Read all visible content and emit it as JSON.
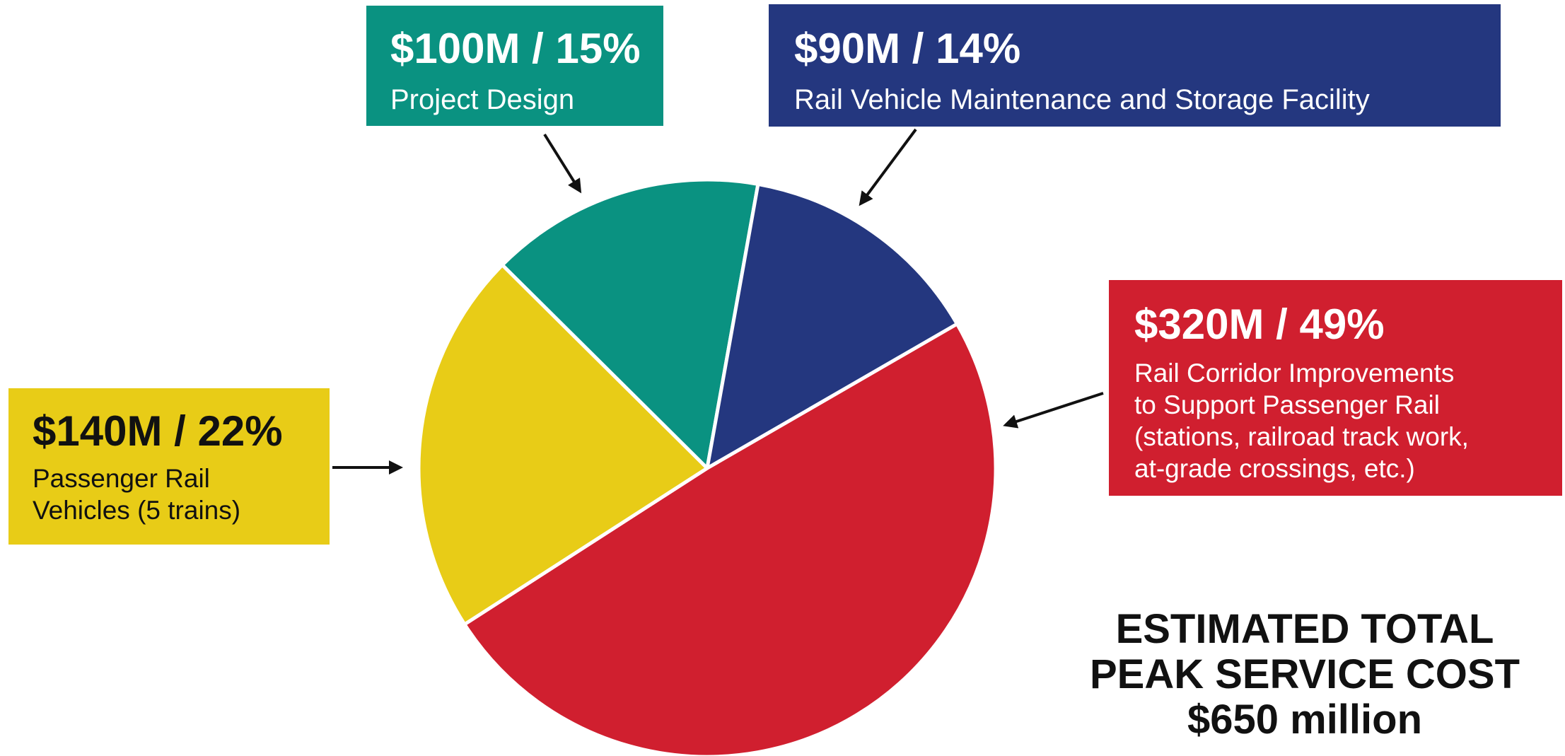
{
  "chart_data": {
    "type": "pie",
    "slices": [
      {
        "amount": "$320M",
        "percent": 49,
        "value": 320,
        "amount_label": "$320M / 49%",
        "description": "Rail Corridor Improvements to Support Passenger Rail (stations, railroad track work, at-grade crossings, etc.)",
        "color": "#d01f2f"
      },
      {
        "amount": "$140M",
        "percent": 22,
        "value": 140,
        "amount_label": "$140M / 22%",
        "description": "Passenger Rail Vehicles (5 trains)",
        "color": "#e8cc17"
      },
      {
        "amount": "$100M",
        "percent": 15,
        "value": 100,
        "amount_label": "$100M / 15%",
        "description": "Project Design",
        "color": "#0a9281"
      },
      {
        "amount": "$90M",
        "percent": 14,
        "value": 90,
        "amount_label": "$90M / 14%",
        "description": "Rail Vehicle Maintenance and Storage Facility",
        "color": "#24377f"
      }
    ],
    "total_label_line1": "ESTIMATED TOTAL",
    "total_label_line2": "PEAK SERVICE COST",
    "total_value": "$650 million"
  },
  "callouts": {
    "design": {
      "amount": "$100M / 15%",
      "desc": "Project Design"
    },
    "maintenance": {
      "amount": "$90M / 14%",
      "desc": "Rail Vehicle Maintenance and Storage Facility"
    },
    "corridor": {
      "amount": "$320M / 49%",
      "desc_lines": [
        "Rail Corridor Improvements",
        "to Support Passenger Rail",
        "(stations, railroad track work,",
        "at-grade crossings, etc.)"
      ]
    },
    "vehicles": {
      "amount": "$140M / 22%",
      "desc_lines": [
        "Passenger Rail",
        "Vehicles (5 trains)"
      ]
    }
  }
}
